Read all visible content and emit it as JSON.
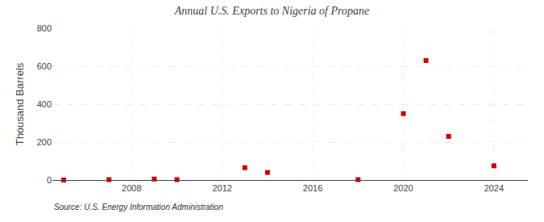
{
  "chart_data": {
    "type": "scatter",
    "title": "Annual U.S. Exports to Nigeria of Propane",
    "ylabel": "Thousand Barrels",
    "annotations": [
      "Source: U.S. Energy Information Administration"
    ],
    "x": [
      2005,
      2007,
      2009,
      2010,
      2013,
      2014,
      2018,
      2020,
      2021,
      2022,
      2024
    ],
    "values": [
      0,
      2,
      5,
      2,
      65,
      40,
      2,
      350,
      630,
      230,
      75
    ],
    "color": "#cc0000",
    "marker": "square",
    "xlim": [
      2004.5,
      2025.5
    ],
    "xticks": [
      2008,
      2012,
      2016,
      2020,
      2024
    ],
    "ylim": [
      0,
      800
    ],
    "yticks": [
      0,
      200,
      400,
      600,
      800
    ],
    "grid": true
  }
}
